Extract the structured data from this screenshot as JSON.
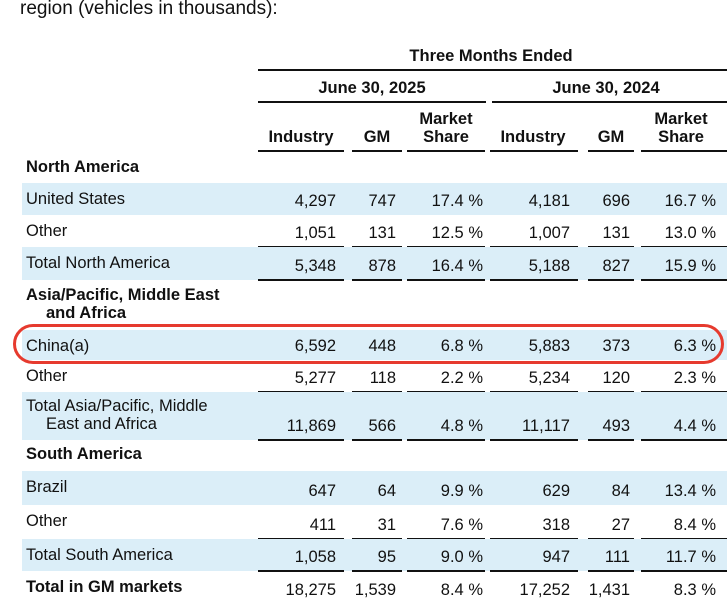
{
  "intro_text": "region (vehicles in thousands):",
  "header": {
    "period": "Three Months Ended",
    "dates": [
      "June 30, 2025",
      "June 30, 2024"
    ],
    "columns": [
      "Industry",
      "GM",
      "Market Share",
      "Industry",
      "GM",
      "Market Share"
    ]
  },
  "rows": [
    {
      "label": "North America",
      "type": "section"
    },
    {
      "label": "United States",
      "type": "data",
      "values": [
        "4,297",
        "747",
        "17.4 %",
        "4,181",
        "696",
        "16.7 %"
      ]
    },
    {
      "label": "Other",
      "type": "data",
      "values": [
        "1,051",
        "131",
        "12.5 %",
        "1,007",
        "131",
        "13.0 %"
      ]
    },
    {
      "label": "Total North America",
      "type": "data",
      "values": [
        "5,348",
        "878",
        "16.4 %",
        "5,188",
        "827",
        "15.9 %"
      ]
    },
    {
      "label": "Asia/Pacific, Middle East\nand Africa",
      "type": "section"
    },
    {
      "label": "China(a)",
      "type": "data",
      "values": [
        "6,592",
        "448",
        "6.8 %",
        "5,883",
        "373",
        "6.3 %"
      ]
    },
    {
      "label": "Other",
      "type": "data",
      "values": [
        "5,277",
        "118",
        "2.2 %",
        "5,234",
        "120",
        "2.3 %"
      ]
    },
    {
      "label": "Total Asia/Pacific, Middle\nEast and Africa",
      "type": "data",
      "values": [
        "11,869",
        "566",
        "4.8 %",
        "11,117",
        "493",
        "4.4 %"
      ]
    },
    {
      "label": "South America",
      "type": "section"
    },
    {
      "label": "Brazil",
      "type": "data",
      "values": [
        "647",
        "64",
        "9.9 %",
        "629",
        "84",
        "13.4 %"
      ]
    },
    {
      "label": "Other",
      "type": "data",
      "values": [
        "411",
        "31",
        "7.6 %",
        "318",
        "27",
        "8.4 %"
      ]
    },
    {
      "label": "Total South America",
      "type": "data",
      "values": [
        "1,058",
        "95",
        "9.0 %",
        "947",
        "111",
        "11.7 %"
      ]
    },
    {
      "label": "Total in GM markets",
      "type": "total",
      "values": [
        "18,275",
        "1,539",
        "8.4 %",
        "17,252",
        "1,431",
        "8.3 %"
      ]
    }
  ],
  "highlight_color": "#e63a2e",
  "shade_color": "#dbeef8"
}
